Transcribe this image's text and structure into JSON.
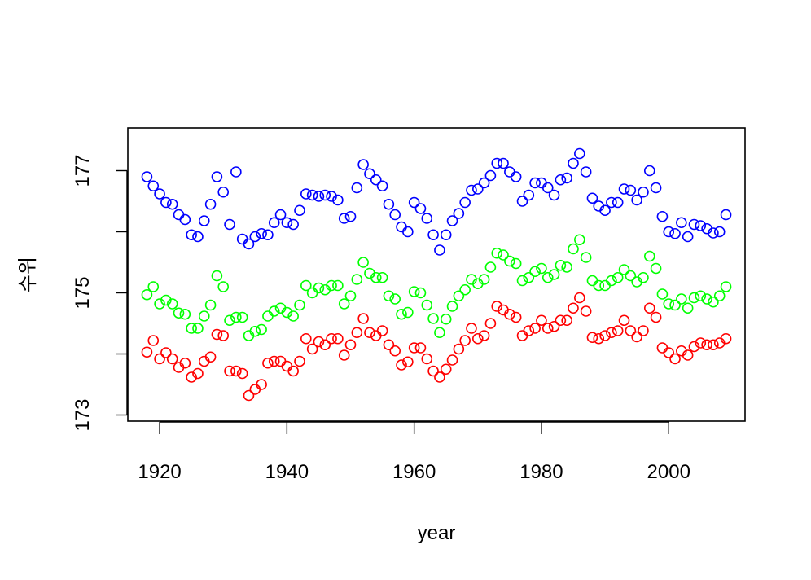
{
  "chart_data": {
    "type": "scatter",
    "xlabel": "year",
    "ylabel": "수위",
    "xlim": [
      1915,
      2012
    ],
    "ylim": [
      172.9,
      177.7
    ],
    "x_ticks": [
      1920,
      1940,
      1960,
      1980,
      2000
    ],
    "y_ticks": [
      173,
      175,
      177
    ],
    "grid": false,
    "x_start": 1918,
    "series": [
      {
        "color": "#0000ff",
        "marker": "open-circle",
        "values": [
          176.9,
          176.75,
          176.62,
          176.48,
          176.45,
          176.28,
          176.2,
          175.95,
          175.92,
          176.18,
          176.45,
          176.9,
          176.65,
          176.12,
          176.98,
          175.88,
          175.8,
          175.92,
          175.97,
          175.95,
          176.15,
          176.28,
          176.15,
          176.12,
          176.35,
          176.62,
          176.6,
          176.58,
          176.6,
          176.58,
          176.52,
          176.22,
          176.25,
          176.72,
          177.1,
          176.95,
          176.85,
          176.75,
          176.45,
          176.28,
          176.08,
          176.0,
          176.48,
          176.38,
          176.22,
          175.95,
          175.7,
          175.95,
          176.18,
          176.3,
          176.48,
          176.68,
          176.7,
          176.8,
          176.92,
          177.12,
          177.12,
          176.98,
          176.9,
          176.5,
          176.6,
          176.8,
          176.8,
          176.72,
          176.6,
          176.85,
          176.88,
          177.12,
          177.28,
          176.98,
          176.55,
          176.42,
          176.35,
          176.48,
          176.48,
          176.7,
          176.68,
          176.52,
          176.65,
          177.0,
          176.72,
          176.25,
          176.0,
          175.97,
          176.15,
          175.92,
          176.12,
          176.1,
          176.05,
          175.98,
          176.0,
          176.28
        ]
      },
      {
        "color": "#00ff00",
        "marker": "open-circle",
        "values": [
          174.97,
          175.1,
          174.82,
          174.88,
          174.82,
          174.67,
          174.65,
          174.42,
          174.42,
          174.62,
          174.8,
          175.28,
          175.1,
          174.55,
          174.6,
          174.6,
          174.3,
          174.37,
          174.4,
          174.62,
          174.7,
          174.75,
          174.68,
          174.62,
          174.8,
          175.12,
          175.0,
          175.08,
          175.05,
          175.12,
          175.12,
          174.82,
          174.95,
          175.22,
          175.5,
          175.32,
          175.25,
          175.25,
          174.95,
          174.9,
          174.65,
          174.68,
          175.02,
          175.0,
          174.8,
          174.58,
          174.35,
          174.57,
          174.78,
          174.95,
          175.05,
          175.22,
          175.15,
          175.22,
          175.42,
          175.65,
          175.62,
          175.52,
          175.48,
          175.2,
          175.25,
          175.35,
          175.4,
          175.25,
          175.3,
          175.45,
          175.42,
          175.72,
          175.87,
          175.58,
          175.2,
          175.12,
          175.12,
          175.2,
          175.25,
          175.38,
          175.28,
          175.18,
          175.25,
          175.6,
          175.4,
          174.98,
          174.82,
          174.8,
          174.9,
          174.75,
          174.92,
          174.95,
          174.9,
          174.85,
          174.95,
          175.1
        ]
      },
      {
        "color": "#ff0000",
        "marker": "open-circle",
        "values": [
          174.03,
          174.22,
          173.92,
          174.02,
          173.92,
          173.78,
          173.85,
          173.62,
          173.68,
          173.88,
          173.95,
          174.32,
          174.3,
          173.72,
          173.72,
          173.68,
          173.32,
          173.42,
          173.5,
          173.85,
          173.88,
          173.88,
          173.8,
          173.72,
          173.88,
          174.25,
          174.08,
          174.2,
          174.15,
          174.25,
          174.25,
          173.98,
          174.15,
          174.35,
          174.58,
          174.35,
          174.3,
          174.38,
          174.15,
          174.05,
          173.82,
          173.87,
          174.1,
          174.1,
          173.92,
          173.72,
          173.62,
          173.75,
          173.9,
          174.08,
          174.22,
          174.42,
          174.25,
          174.3,
          174.5,
          174.78,
          174.72,
          174.65,
          174.6,
          174.3,
          174.38,
          174.42,
          174.55,
          174.42,
          174.45,
          174.55,
          174.55,
          174.75,
          174.92,
          174.7,
          174.27,
          174.25,
          174.3,
          174.35,
          174.38,
          174.55,
          174.38,
          174.28,
          174.38,
          174.75,
          174.6,
          174.1,
          174.02,
          173.92,
          174.05,
          173.98,
          174.12,
          174.18,
          174.15,
          174.15,
          174.18,
          174.25
        ]
      }
    ]
  }
}
